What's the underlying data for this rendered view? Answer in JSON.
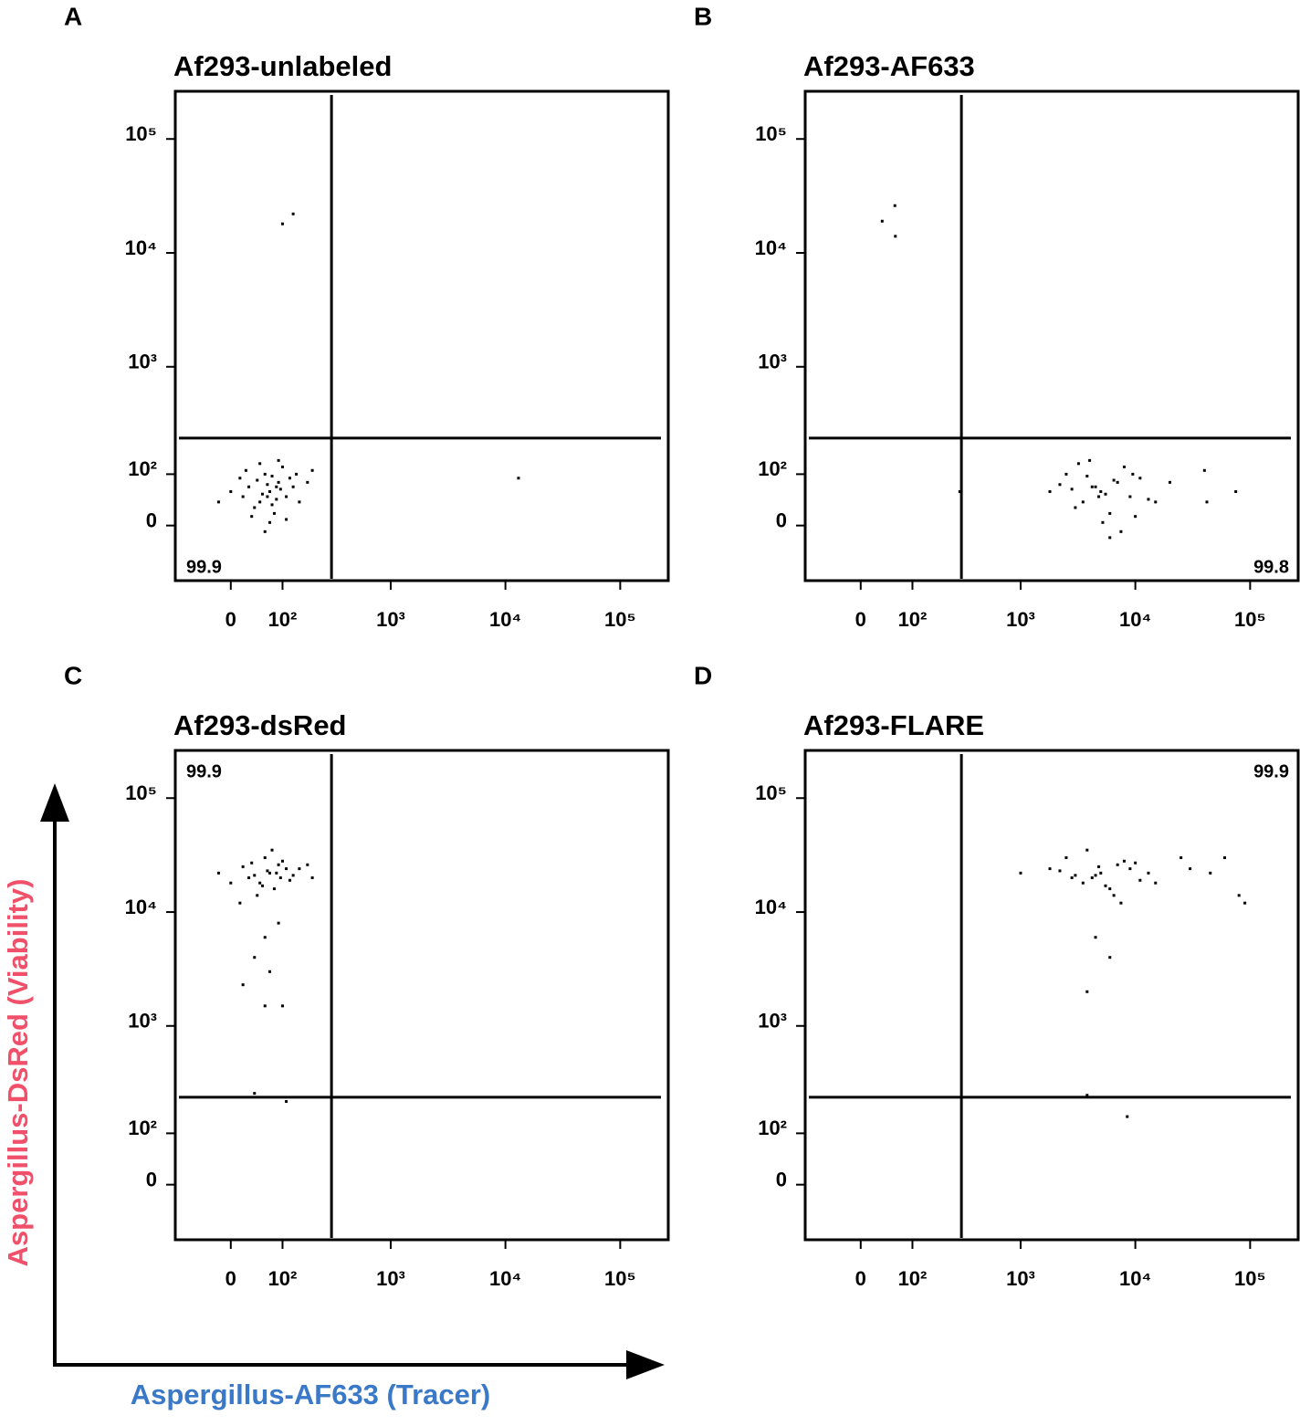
{
  "x_label": "Aspergillus-AF633 (Tracer)",
  "y_label": "Aspergillus-DsRed (Viability)",
  "x_label_color": "#3a78c8",
  "y_label_color": "#f0506a",
  "chart_data": [
    {
      "type": "scatter",
      "panel": "A",
      "title": "Af293-unlabeled",
      "scale": "biexponential",
      "color": "#000000",
      "xlim": [
        -110,
        262144
      ],
      "ylim": [
        -110,
        262144
      ],
      "xticks": [
        0,
        {
          "value": 100,
          "label": "10²"
        },
        {
          "value": 1000,
          "label": "10³"
        },
        {
          "value": 10000,
          "label": "10⁴"
        },
        {
          "value": 100000,
          "label": "10⁵"
        }
      ],
      "yticks": [
        0,
        {
          "value": 100,
          "label": "10²"
        },
        {
          "value": 1000,
          "label": "10³"
        },
        {
          "value": 10000,
          "label": "10⁴"
        },
        {
          "value": 100000,
          "label": "10⁵"
        }
      ],
      "gate_x": 300,
      "gate_y": 230,
      "quadrant_value": 99.9,
      "quadrant": "bottom-left",
      "x": [
        70,
        50,
        90,
        30,
        110,
        60,
        80,
        40,
        120,
        20,
        100,
        65,
        55,
        85,
        75,
        45,
        95,
        35,
        130,
        15,
        150,
        60,
        0,
        -20,
        180,
        200,
        90,
        70,
        110,
        50,
        25,
        140,
        75,
        85,
        65,
        100,
        130,
        13000
      ],
      "y": [
        60,
        40,
        80,
        70,
        50,
        100,
        20,
        30,
        90,
        50,
        120,
        75,
        55,
        45,
        95,
        85,
        65,
        15,
        70,
        90,
        40,
        -10,
        60,
        40,
        80,
        110,
        140,
        5,
        10,
        130,
        110,
        100,
        35,
        70,
        50,
        18000,
        22000,
        90
      ]
    },
    {
      "type": "scatter",
      "panel": "B",
      "title": "Af293-AF633",
      "scale": "biexponential",
      "color": "#000000",
      "xlim": [
        -110,
        262144
      ],
      "ylim": [
        -110,
        262144
      ],
      "xticks": [
        0,
        {
          "value": 100,
          "label": "10²"
        },
        {
          "value": 1000,
          "label": "10³"
        },
        {
          "value": 10000,
          "label": "10⁴"
        },
        {
          "value": 100000,
          "label": "10⁵"
        }
      ],
      "yticks": [
        0,
        {
          "value": 100,
          "label": "10²"
        },
        {
          "value": 1000,
          "label": "10³"
        },
        {
          "value": 10000,
          "label": "10⁴"
        },
        {
          "value": 100000,
          "label": "10⁵"
        }
      ],
      "gate_x": 300,
      "gate_y": 230,
      "quadrant_value": 99.8,
      "quadrant": "bottom-right",
      "x": [
        5000,
        3500,
        7000,
        4200,
        9000,
        2500,
        6000,
        3000,
        11000,
        4800,
        8000,
        2200,
        5500,
        13000,
        3800,
        6500,
        2800,
        10000,
        4500,
        7500,
        1800,
        15000,
        3200,
        5200,
        20000,
        40000,
        42000,
        75000,
        60,
        36,
        61,
        290,
        4000,
        6000,
        9500
      ],
      "y": [
        60,
        40,
        80,
        70,
        50,
        100,
        20,
        30,
        90,
        50,
        120,
        75,
        55,
        45,
        95,
        85,
        65,
        15,
        70,
        -10,
        60,
        40,
        130,
        5,
        80,
        110,
        40,
        60,
        26000,
        19000,
        14000,
        60,
        140,
        -20,
        100
      ]
    },
    {
      "type": "scatter",
      "panel": "C",
      "title": "Af293-dsRed",
      "scale": "biexponential",
      "color": "#000000",
      "xlim": [
        -110,
        262144
      ],
      "ylim": [
        -110,
        262144
      ],
      "xticks": [
        0,
        {
          "value": 100,
          "label": "10²"
        },
        {
          "value": 1000,
          "label": "10³"
        },
        {
          "value": 10000,
          "label": "10⁴"
        },
        {
          "value": 100000,
          "label": "10⁵"
        }
      ],
      "yticks": [
        0,
        {
          "value": 100,
          "label": "10²"
        },
        {
          "value": 1000,
          "label": "10³"
        },
        {
          "value": 10000,
          "label": "10⁴"
        },
        {
          "value": 100000,
          "label": "10⁵"
        }
      ],
      "gate_x": 300,
      "gate_y": 230,
      "quadrant_value": 99.9,
      "quadrant": "top-left",
      "x": [
        70,
        50,
        90,
        30,
        110,
        60,
        80,
        40,
        120,
        20,
        100,
        65,
        55,
        85,
        75,
        45,
        95,
        35,
        130,
        15,
        150,
        0,
        -20,
        180,
        200,
        60,
        90,
        40,
        20,
        60,
        40,
        100,
        70,
        110
      ],
      "y": [
        22000,
        18000,
        26000,
        20000,
        24000,
        30000,
        16000,
        21000,
        19000,
        25000,
        28000,
        23000,
        17000,
        22000,
        35000,
        14000,
        20000,
        27000,
        21000,
        12000,
        24000,
        18000,
        22000,
        26000,
        20000,
        6000,
        8000,
        4000,
        2300,
        1500,
        250,
        1500,
        3000,
        210
      ]
    },
    {
      "type": "scatter",
      "panel": "D",
      "title": "Af293-FLARE",
      "scale": "biexponential",
      "color": "#000000",
      "xlim": [
        -110,
        262144
      ],
      "ylim": [
        -110,
        262144
      ],
      "xticks": [
        0,
        {
          "value": 100,
          "label": "10²"
        },
        {
          "value": 1000,
          "label": "10³"
        },
        {
          "value": 10000,
          "label": "10⁴"
        },
        {
          "value": 100000,
          "label": "10⁵"
        }
      ],
      "yticks": [
        0,
        {
          "value": 100,
          "label": "10²"
        },
        {
          "value": 1000,
          "label": "10³"
        },
        {
          "value": 10000,
          "label": "10⁴"
        },
        {
          "value": 100000,
          "label": "10⁵"
        }
      ],
      "gate_x": 300,
      "gate_y": 230,
      "quadrant_value": 99.9,
      "quadrant": "top-right",
      "x": [
        5000,
        3500,
        7000,
        4200,
        9000,
        2500,
        6000,
        3000,
        11000,
        4800,
        8000,
        2200,
        5500,
        13000,
        3800,
        6500,
        2800,
        10000,
        4500,
        7500,
        1800,
        15000,
        1000,
        25000,
        30000,
        45000,
        60000,
        80000,
        90000,
        4500,
        3800,
        6000,
        3800,
        8500
      ],
      "y": [
        22000,
        18000,
        26000,
        20000,
        24000,
        30000,
        16000,
        21000,
        19000,
        25000,
        28000,
        23000,
        17000,
        22000,
        35000,
        14000,
        20000,
        27000,
        21000,
        12000,
        24000,
        18000,
        22000,
        30000,
        24000,
        22000,
        30000,
        14000,
        12000,
        6000,
        2000,
        4000,
        240,
        150
      ]
    }
  ]
}
